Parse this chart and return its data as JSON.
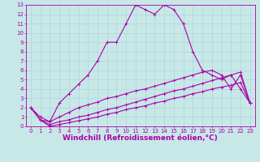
{
  "background_color": "#c8e8e8",
  "line_color": "#aa00aa",
  "grid_color": "#b0d4d4",
  "xlabel": "Windchill (Refroidissement éolien,°C)",
  "xlabel_color": "#aa00aa",
  "xlim": [
    -0.5,
    23.5
  ],
  "ylim": [
    0,
    13
  ],
  "xticks": [
    0,
    1,
    2,
    3,
    4,
    5,
    6,
    7,
    8,
    9,
    10,
    11,
    12,
    13,
    14,
    15,
    16,
    17,
    18,
    19,
    20,
    21,
    22,
    23
  ],
  "yticks": [
    0,
    1,
    2,
    3,
    4,
    5,
    6,
    7,
    8,
    9,
    10,
    11,
    12,
    13
  ],
  "line1_x": [
    0,
    1,
    2,
    3,
    4,
    5,
    6,
    7,
    8,
    9,
    10,
    11,
    12,
    13,
    14,
    15,
    16,
    17,
    18,
    19,
    20,
    21,
    22,
    23
  ],
  "line1_y": [
    2,
    1,
    0.5,
    2.5,
    3.5,
    4.5,
    5.5,
    7,
    9,
    9,
    11,
    13,
    12.5,
    12,
    13,
    12.5,
    11,
    8,
    6,
    5.5,
    5,
    5.5,
    4,
    2.5
  ],
  "line2_x": [
    0,
    1,
    2,
    3,
    4,
    5,
    6,
    7,
    8,
    9,
    10,
    11,
    12,
    13,
    14,
    15,
    16,
    17,
    18,
    19,
    20,
    21,
    22,
    23
  ],
  "line2_y": [
    2,
    0.7,
    0.5,
    1.0,
    1.5,
    2.0,
    2.3,
    2.6,
    3.0,
    3.2,
    3.5,
    3.8,
    4.0,
    4.3,
    4.6,
    4.9,
    5.2,
    5.5,
    5.8,
    6.0,
    5.5,
    4.0,
    5.5,
    2.5
  ],
  "line3_x": [
    0,
    1,
    2,
    3,
    4,
    5,
    6,
    7,
    8,
    9,
    10,
    11,
    12,
    13,
    14,
    15,
    16,
    17,
    18,
    19,
    20,
    21,
    22,
    23
  ],
  "line3_y": [
    2,
    0.7,
    0.2,
    0.5,
    0.7,
    1.0,
    1.2,
    1.5,
    1.8,
    2.0,
    2.3,
    2.6,
    2.9,
    3.2,
    3.5,
    3.8,
    4.0,
    4.3,
    4.6,
    4.9,
    5.2,
    5.5,
    5.8,
    2.5
  ],
  "line4_x": [
    0,
    1,
    2,
    3,
    4,
    5,
    6,
    7,
    8,
    9,
    10,
    11,
    12,
    13,
    14,
    15,
    16,
    17,
    18,
    19,
    20,
    21,
    22,
    23
  ],
  "line4_y": [
    2,
    0.7,
    0.0,
    0.2,
    0.4,
    0.6,
    0.8,
    1.0,
    1.3,
    1.5,
    1.8,
    2.0,
    2.2,
    2.5,
    2.7,
    3.0,
    3.2,
    3.5,
    3.7,
    4.0,
    4.2,
    4.4,
    4.7,
    2.5
  ],
  "markersize": 2,
  "linewidth": 0.8,
  "tick_fontsize": 5,
  "xlabel_fontsize": 6.5
}
